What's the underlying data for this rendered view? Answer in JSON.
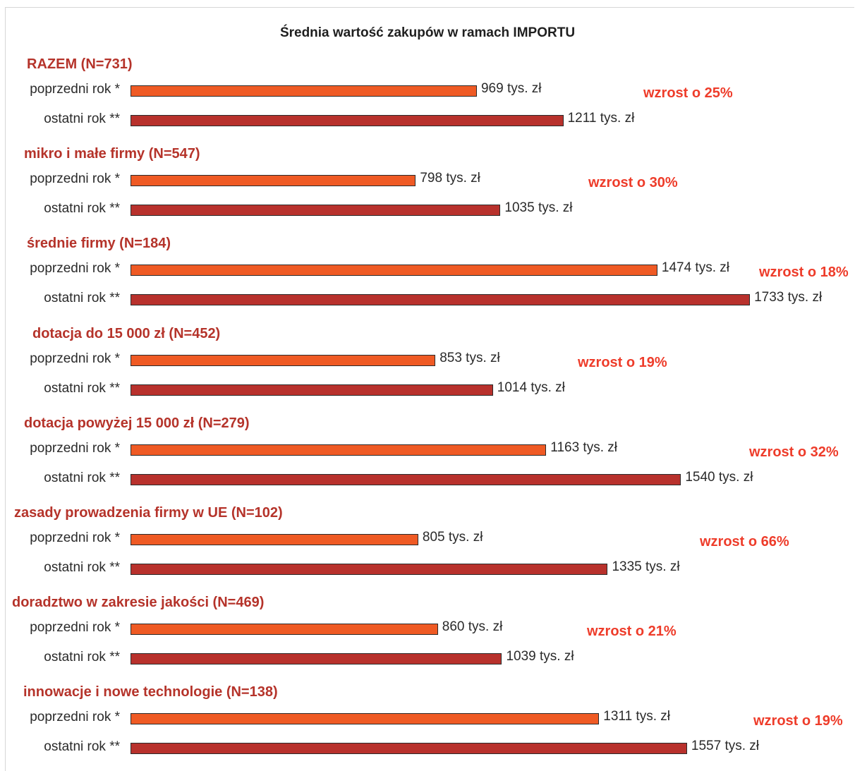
{
  "chart_data": {
    "type": "bar",
    "orientation": "horizontal",
    "title": "Średnia wartość zakupów w ramach IMPORTU",
    "unit": "tys. zł",
    "row_labels": [
      "poprzedni rok *",
      "ostatni rok **"
    ],
    "colors": {
      "prev": "#ef5a24",
      "last": "#b8312c",
      "group_title": "#b5332a",
      "growth": "#ee3c2a"
    },
    "xlim": [
      0,
      1800
    ],
    "groups": [
      {
        "name": "RAZEM (N=731)",
        "prev": 969,
        "last": 1211,
        "prev_label": "969 tys. zł",
        "last_label": "1211 tys. zł",
        "growth": "wzrost o 25%"
      },
      {
        "name": "mikro i małe firmy (N=547)",
        "prev": 798,
        "last": 1035,
        "prev_label": "798 tys. zł",
        "last_label": "1035 tys. zł",
        "growth": "wzrost o 30%"
      },
      {
        "name": "średnie firmy (N=184)",
        "prev": 1474,
        "last": 1733,
        "prev_label": "1474 tys. zł",
        "last_label": "1733 tys. zł",
        "growth": "wzrost o 18%"
      },
      {
        "name": "dotacja do 15 000 zł (N=452)",
        "prev": 853,
        "last": 1014,
        "prev_label": "853 tys. zł",
        "last_label": "1014 tys. zł",
        "growth": "wzrost o 19%"
      },
      {
        "name": "dotacja powyżej 15 000 zł (N=279)",
        "prev": 1163,
        "last": 1540,
        "prev_label": "1163 tys. zł",
        "last_label": "1540 tys. zł",
        "growth": "wzrost o 32%"
      },
      {
        "name": "zasady prowadzenia firmy w UE (N=102)",
        "prev": 805,
        "last": 1335,
        "prev_label": "805 tys. zł",
        "last_label": "1335 tys. zł",
        "growth": "wzrost o 66%"
      },
      {
        "name": "doradztwo w zakresie jakości (N=469)",
        "prev": 860,
        "last": 1039,
        "prev_label": "860 tys. zł",
        "last_label": "1039 tys. zł",
        "growth": "wzrost o 21%"
      },
      {
        "name": "innowacje i nowe technologie (N=138)",
        "prev": 1311,
        "last": 1557,
        "prev_label": "1311 tys. zł",
        "last_label": "1557 tys. zł",
        "growth": "wzrost o 19%"
      }
    ]
  }
}
